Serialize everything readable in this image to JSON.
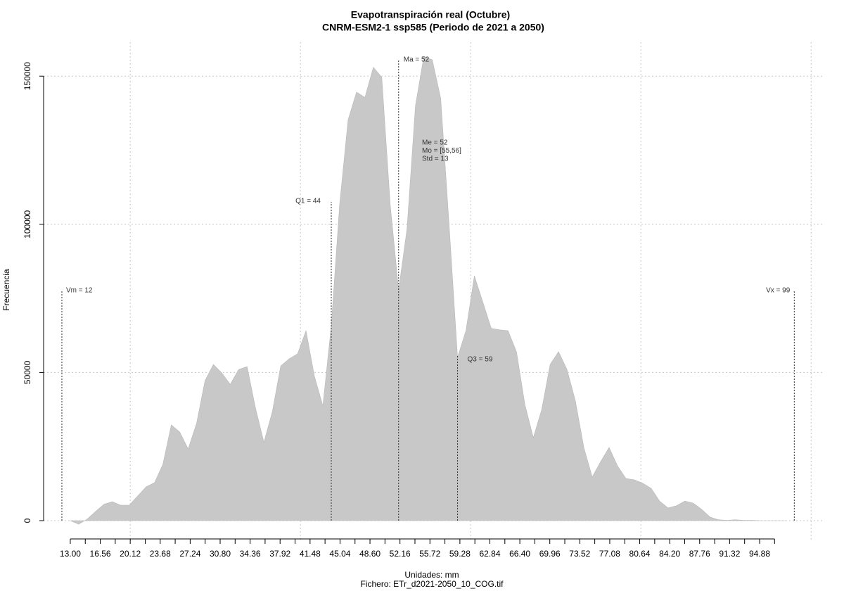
{
  "chart_data": {
    "type": "area",
    "title": "Evapotranspiración real (Octubre)",
    "subtitle": "CNRM-ESM2-1 ssp585 (Periodo de 2021 a 2050)",
    "xlabel": "Unidades: mm",
    "caption": "Fichero: ETr_d2021-2050_10_COG.tif",
    "ylabel": "Frecuencia",
    "color": "#c8c8c8",
    "x": [
      13,
      14,
      15,
      16,
      17,
      18,
      19,
      20,
      21,
      22,
      23,
      24,
      25,
      26,
      27,
      28,
      29,
      30,
      31,
      32,
      33,
      34,
      35,
      36,
      37,
      38,
      39,
      40,
      41,
      42,
      43,
      44,
      45,
      46,
      47,
      48,
      49,
      50,
      51,
      52,
      53,
      54,
      55,
      56,
      57,
      58,
      59,
      60,
      61,
      62,
      63,
      64,
      65,
      66,
      67,
      68,
      69,
      70,
      71,
      72,
      73,
      74,
      75,
      76,
      77,
      78,
      79,
      80,
      81,
      82,
      83,
      84,
      85,
      86,
      87,
      88,
      89,
      90,
      91,
      92,
      93,
      94,
      95,
      96,
      97,
      98
    ],
    "values": [
      0,
      -1200,
      500,
      3100,
      5500,
      6400,
      5200,
      5200,
      8300,
      11400,
      12800,
      19000,
      32300,
      29900,
      24200,
      32800,
      47200,
      52700,
      49800,
      46000,
      51000,
      52000,
      38000,
      26400,
      36800,
      52200,
      54600,
      56300,
      64100,
      48700,
      38700,
      65700,
      106800,
      135300,
      144600,
      142800,
      153000,
      149600,
      106800,
      77800,
      98500,
      140000,
      156700,
      155500,
      142500,
      99700,
      55100,
      64100,
      82600,
      73800,
      64900,
      64400,
      64100,
      57000,
      39200,
      28000,
      37500,
      52700,
      57000,
      51000,
      40400,
      24700,
      14700,
      19900,
      24700,
      18500,
      14200,
      13800,
      12600,
      10900,
      6600,
      4300,
      5000,
      6600,
      5900,
      3800,
      1200,
      300,
      100,
      300,
      100,
      100,
      0,
      0,
      0,
      0
    ],
    "xlim": [
      9.83,
      102.4
    ],
    "ylim": [
      -6650,
      161450
    ],
    "xticks": [
      {
        "value": 13,
        "label": "13.00"
      },
      16.56,
      20.12,
      23.68,
      27.24,
      {
        "value": 30.8,
        "label": "30.80"
      },
      34.36,
      37.92,
      41.48,
      45.04,
      {
        "value": 48.6,
        "label": "48.60"
      },
      52.16,
      55.72,
      59.28,
      62.84,
      {
        "value": 66.4,
        "label": "66.40"
      },
      69.96,
      73.52,
      77.08,
      80.64,
      {
        "value": 84.2,
        "label": "84.20"
      },
      87.76,
      91.32,
      94.88
    ],
    "xminorticks": [
      14.78,
      18.34,
      21.9,
      25.46,
      29.02,
      32.58,
      36.14,
      39.7,
      43.26,
      46.82,
      50.38,
      53.94,
      57.5,
      61.06,
      64.62,
      68.18,
      71.74,
      75.3,
      78.86,
      82.42,
      85.98,
      89.54,
      93.1,
      96.66
    ],
    "xgrid": [
      20.12,
      40.34,
      60.56,
      80.78,
      101
    ],
    "yticks": [
      0,
      50000,
      100000,
      150000
    ],
    "grid": true,
    "annotations": [
      {
        "label": "Vm = 12",
        "value": 12
      },
      {
        "label": "Q1 = 44",
        "value": 44
      },
      {
        "label": "Ma = 52",
        "value": 52
      },
      {
        "label": "Q3 = 59",
        "value": 59
      },
      {
        "label": "Vx = 99",
        "value": 99
      }
    ],
    "stats": [
      "Me = 52",
      "Mo = [55,56]",
      "Std = 13"
    ]
  }
}
